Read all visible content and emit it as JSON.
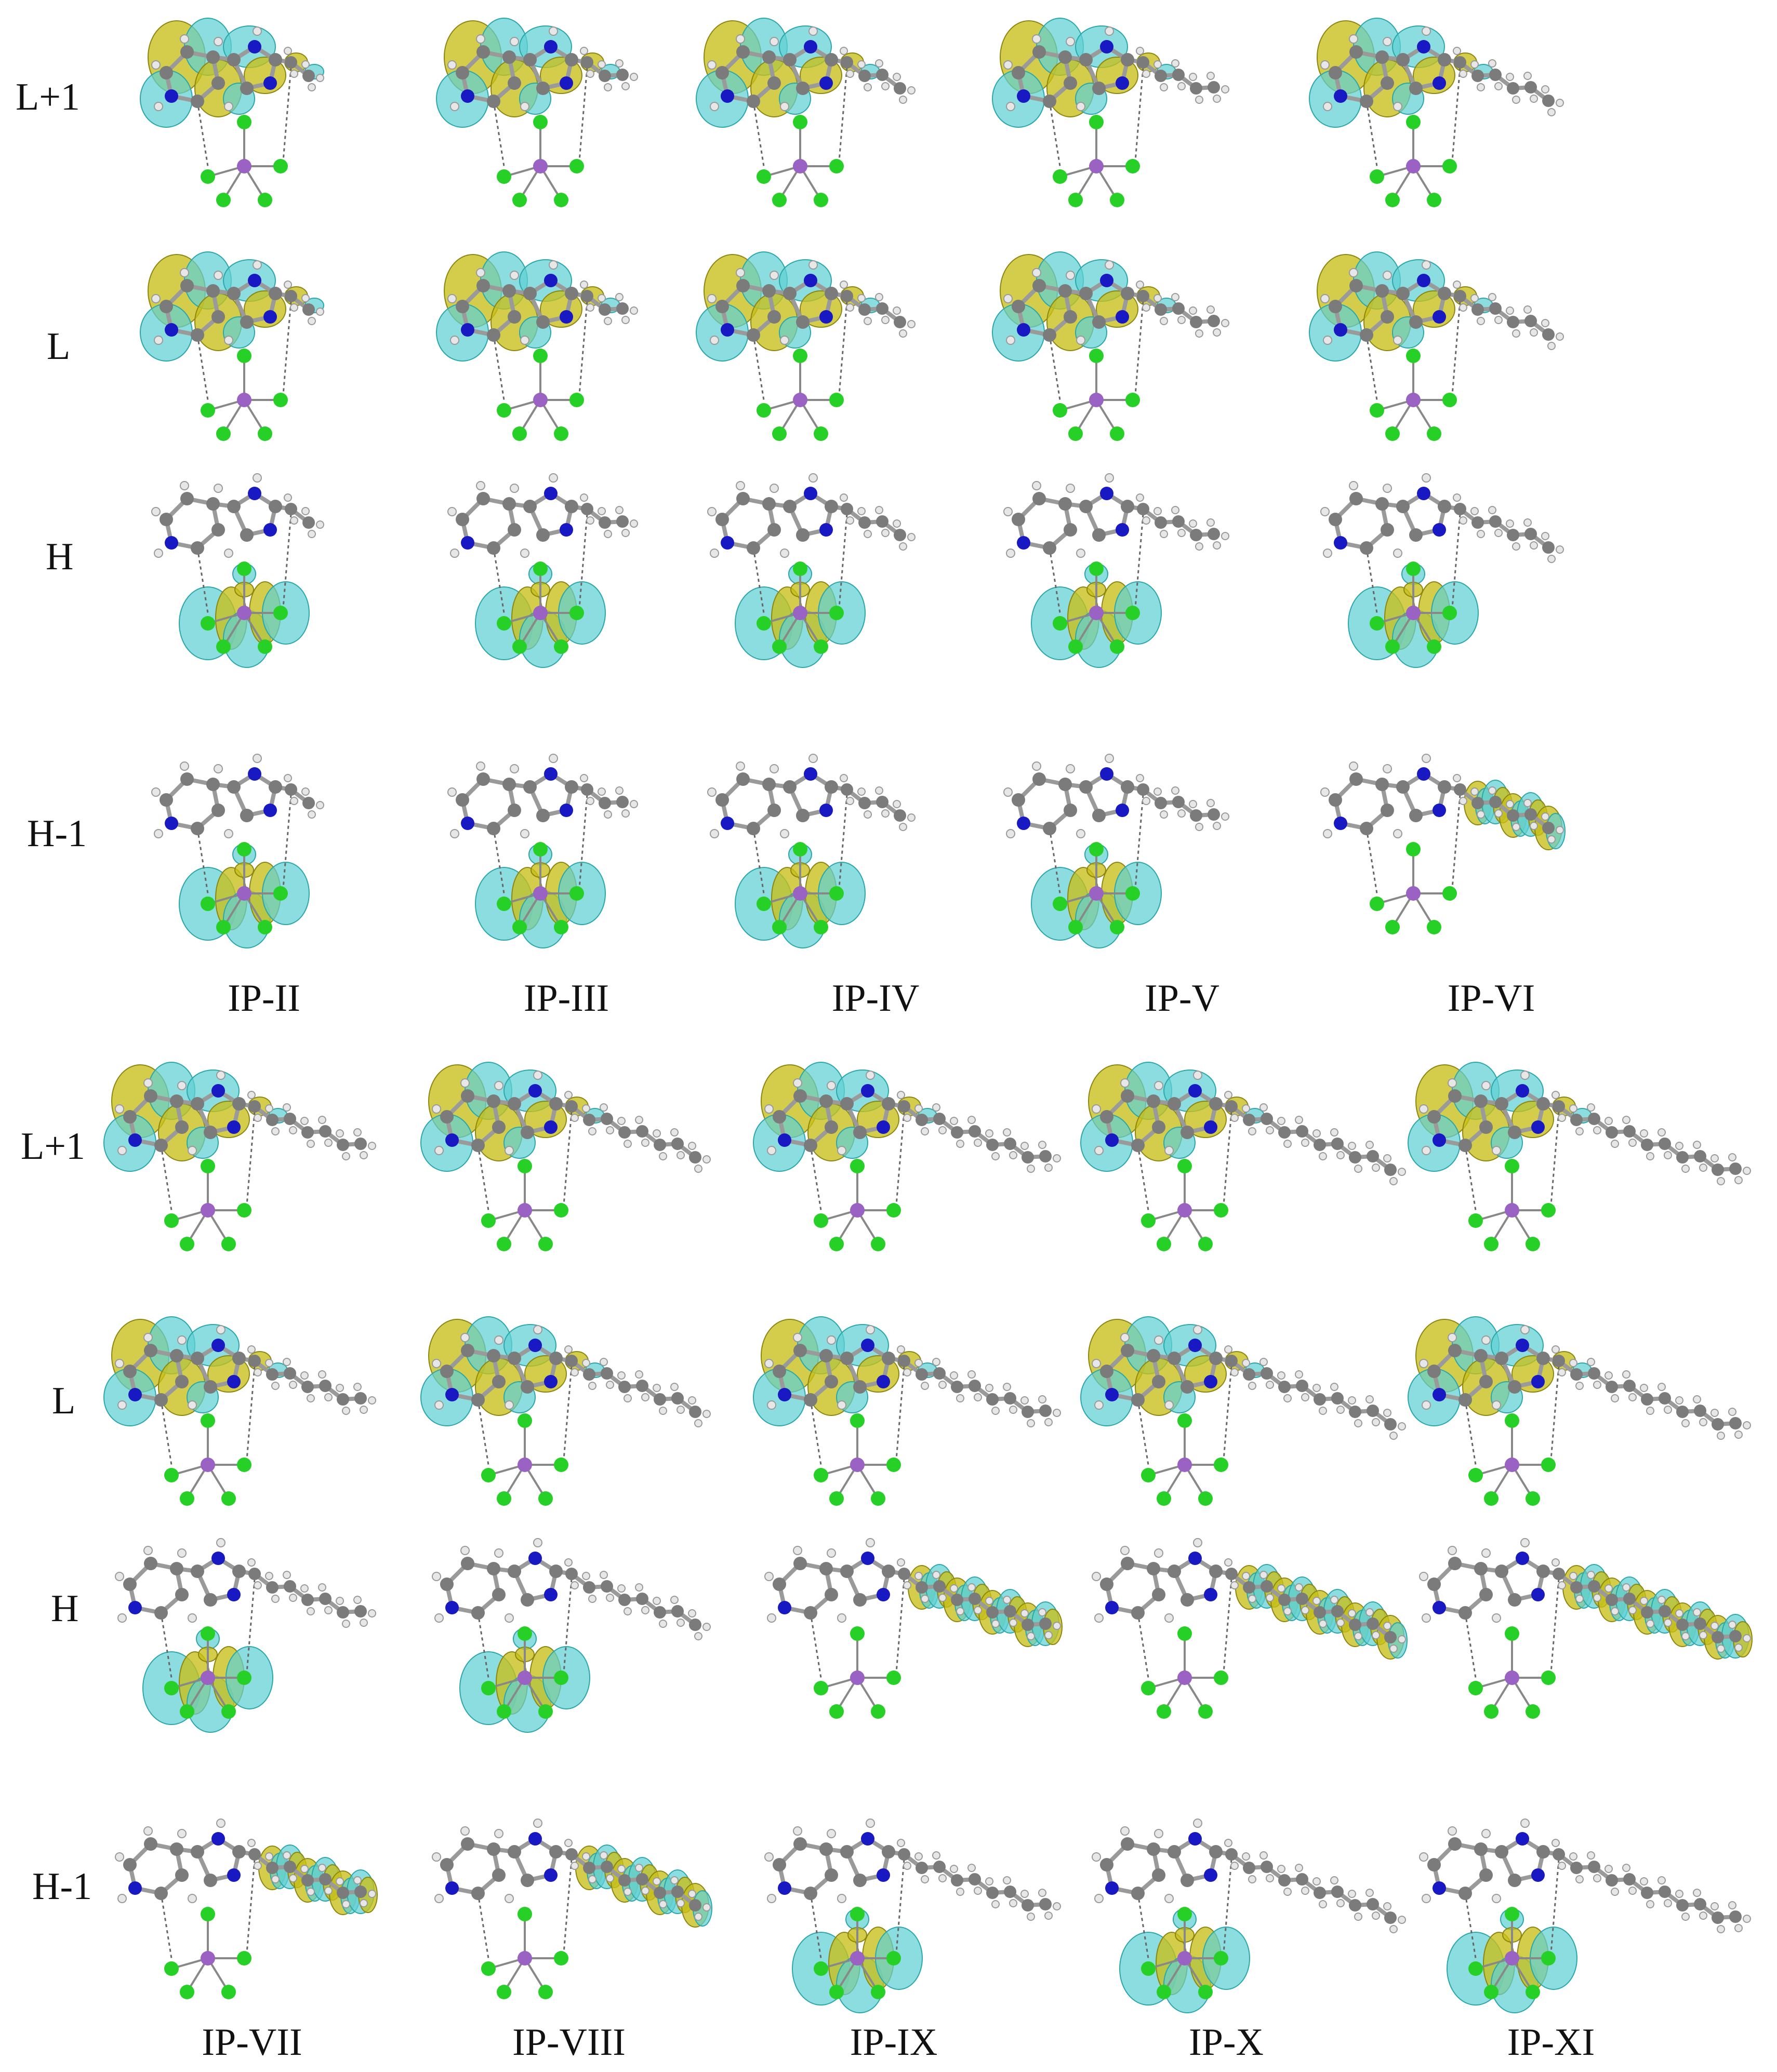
{
  "top_block": {
    "row_labels": [
      "L+1",
      "L",
      "H",
      "H-1"
    ],
    "column_labels": [
      "IP-II",
      "IP-III",
      "IP-IV",
      "IP-V",
      "IP-VI"
    ]
  },
  "bottom_block": {
    "row_labels": [
      "L+1",
      "L",
      "H",
      "H-1"
    ],
    "column_labels": [
      "IP-VII",
      "IP-VIII",
      "IP-IX",
      "IP-X",
      "IP-XI"
    ]
  },
  "colors": {
    "orbital_positive": "#5fd0d2",
    "orbital_negative": "#c8bf18",
    "carbon": "#7b7b7b",
    "hydrogen": "#e7e7e7",
    "nitrogen": "#1919c4",
    "chlorine": "#27d027",
    "phosphorus": "#9a62c3"
  }
}
